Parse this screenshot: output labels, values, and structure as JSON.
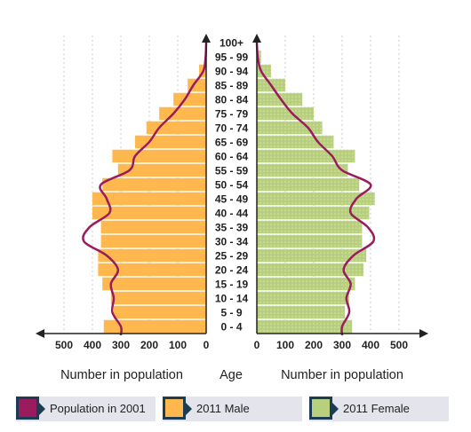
{
  "chart_data": {
    "type": "bar",
    "subtype": "population-pyramid",
    "categories": [
      "0 - 4",
      "5 - 9",
      "10 - 14",
      "15 - 19",
      "20 - 24",
      "25 - 29",
      "30 - 34",
      "35 - 39",
      "40 - 44",
      "45 - 49",
      "50 - 54",
      "55 - 59",
      "60 - 64",
      "65 - 69",
      "70 - 74",
      "75 - 79",
      "80 - 84",
      "85 - 89",
      "90 - 94",
      "95 - 99",
      "100+"
    ],
    "series": [
      {
        "name": "2011 Male",
        "side": "left",
        "color": "#ffb84d",
        "values": [
          360,
          325,
          335,
          365,
          380,
          380,
          370,
          370,
          400,
          400,
          365,
          310,
          330,
          250,
          210,
          165,
          115,
          65,
          25,
          5,
          0
        ]
      },
      {
        "name": "2011 Female",
        "side": "right",
        "color": "#b8cf7d",
        "values": [
          335,
          310,
          325,
          345,
          375,
          385,
          370,
          370,
          395,
          415,
          360,
          320,
          345,
          270,
          230,
          200,
          160,
          100,
          50,
          15,
          2
        ]
      },
      {
        "name": "Population in 2001",
        "type": "line",
        "color": "#9b1c5e",
        "male": [
          300,
          330,
          325,
          335,
          310,
          350,
          430,
          410,
          340,
          350,
          370,
          270,
          250,
          200,
          165,
          115,
          75,
          45,
          10,
          2,
          0
        ],
        "female": [
          300,
          325,
          315,
          330,
          305,
          340,
          410,
          390,
          330,
          350,
          400,
          300,
          265,
          215,
          180,
          125,
          85,
          50,
          15,
          3,
          0
        ]
      }
    ],
    "xlabel_left": "Number in population",
    "xlabel_center": "Age",
    "xlabel_right": "Number in population",
    "xticks": [
      "500",
      "400",
      "300",
      "200",
      "100",
      "0"
    ],
    "xticks_right": [
      "0",
      "100",
      "200",
      "300",
      "400",
      "500"
    ],
    "xlim": [
      0,
      500
    ],
    "grid": "vertical dashed",
    "legend": [
      {
        "label": "Population in 2001",
        "color": "#9b1c5e"
      },
      {
        "label": "2011 Male",
        "color": "#ffb84d"
      },
      {
        "label": "2011 Female",
        "color": "#b8cf7d"
      }
    ],
    "legend_position": "bottom"
  }
}
